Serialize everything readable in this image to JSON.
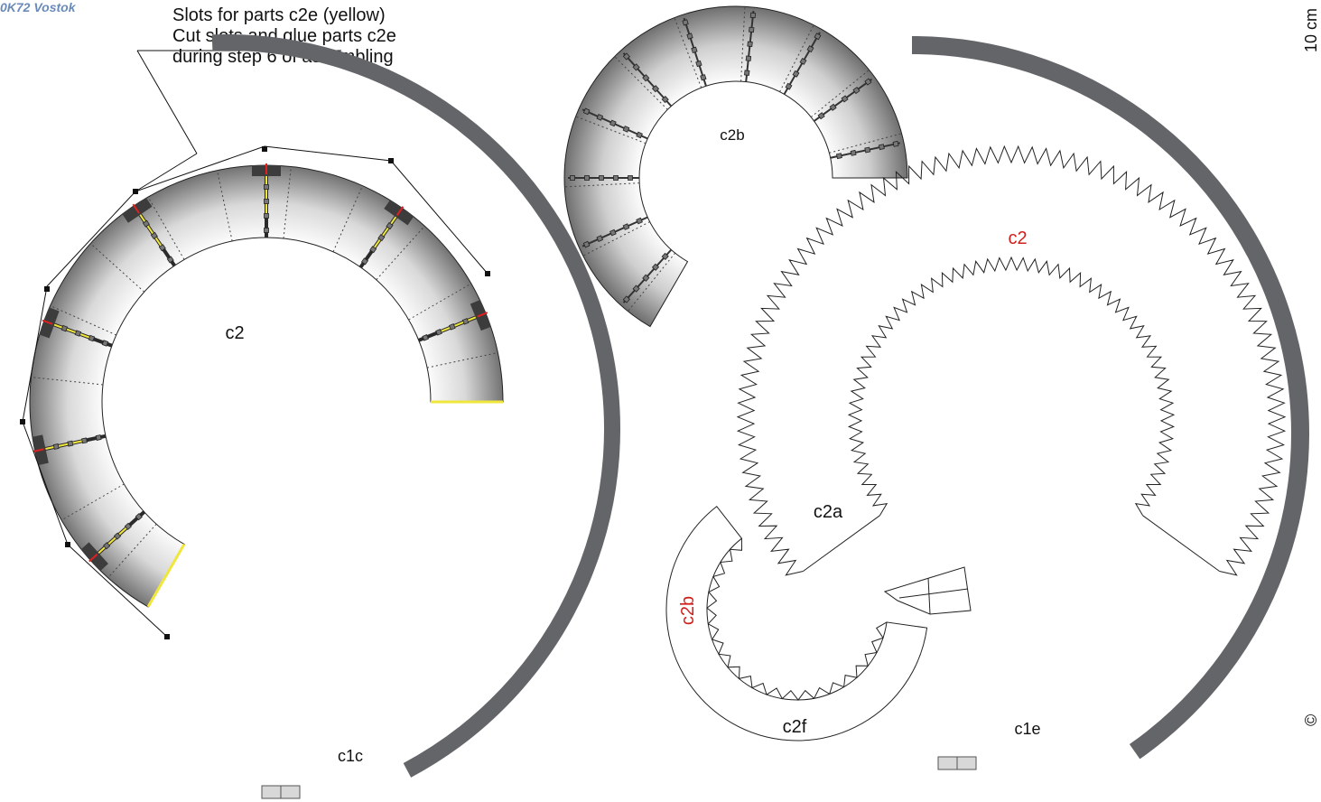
{
  "header": {
    "model_tag": "0K72 Vostok",
    "note": "Slots for parts c2e (yellow)\nCut slots and glue parts c2e\nduring step 6 of assembling"
  },
  "parts": {
    "c2_main": "c2",
    "c2b_shaded": "c2b",
    "c2_outline": "c2",
    "c2a": "c2a",
    "c2b_outline": "c2b",
    "c2f": "c2f",
    "c1c": "c1c",
    "c1e": "c1e"
  },
  "margin": {
    "top_text": "10 cm",
    "bottom_text": "©"
  },
  "colors": {
    "band": "#636569",
    "tab": "#3c3c3c",
    "slot": "#f0e63c",
    "slot_edge": "#e02020",
    "red_label": "#d0201e"
  }
}
